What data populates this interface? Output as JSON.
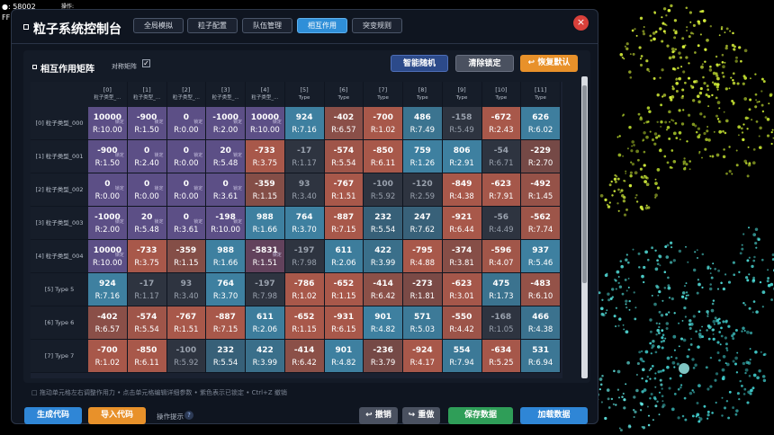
{
  "hud": {
    "count": "●: 58002",
    "op": "操作:",
    "fps": "FF"
  },
  "header": {
    "title": "粒子系统控制台",
    "tabs": [
      "全局模拟",
      "粒子配置",
      "队伍管理",
      "相互作用",
      "突变规则"
    ],
    "active_tab": 3,
    "close": "×"
  },
  "matrix": {
    "title": "相互作用矩阵",
    "symmetric_label": "对称矩阵",
    "symmetric": true,
    "buttons": [
      "智能随机",
      "清除锁定",
      "↩ 恢复默认"
    ],
    "lock_tag": "锁定",
    "columns": [
      {
        "index": "[0]",
        "name": "粒子类型_..."
      },
      {
        "index": "[1]",
        "name": "粒子类型_..."
      },
      {
        "index": "[2]",
        "name": "粒子类型_..."
      },
      {
        "index": "[3]",
        "name": "粒子类型_..."
      },
      {
        "index": "[4]",
        "name": "粒子类型_..."
      },
      {
        "index": "[5]",
        "name": "Type"
      },
      {
        "index": "[6]",
        "name": "Type"
      },
      {
        "index": "[7]",
        "name": "Type"
      },
      {
        "index": "[8]",
        "name": "Type"
      },
      {
        "index": "[9]",
        "name": "Type"
      },
      {
        "index": "[10]",
        "name": "Type"
      },
      {
        "index": "[11]",
        "name": "Type"
      }
    ],
    "rows": [
      {
        "label": "[0] 粒子类型_000",
        "cells": [
          {
            "value": 10000,
            "r": "R:10.00",
            "locked": true
          },
          {
            "value": -900,
            "r": "R:1.50",
            "locked": true
          },
          {
            "value": 0,
            "r": "R:0.00",
            "locked": true
          },
          {
            "value": -1000,
            "r": "R:2.00",
            "locked": true
          },
          {
            "value": 10000,
            "r": "R:10.00",
            "locked": true
          },
          {
            "value": 924,
            "r": "R:7.16"
          },
          {
            "value": -402,
            "r": "R:6.57"
          },
          {
            "value": -700,
            "r": "R:1.02"
          },
          {
            "value": 486,
            "r": "R:7.49"
          },
          {
            "value": -158,
            "r": "R:5.49"
          },
          {
            "value": -672,
            "r": "R:2.43"
          },
          {
            "value": 626,
            "r": "R:6.02"
          }
        ]
      },
      {
        "label": "[1] 粒子类型_001",
        "cells": [
          {
            "value": -900,
            "r": "R:1.50",
            "locked": true
          },
          {
            "value": 0,
            "r": "R:2.40",
            "locked": true
          },
          {
            "value": 0,
            "r": "R:0.00",
            "locked": true
          },
          {
            "value": 20,
            "r": "R:5.48",
            "locked": true
          },
          {
            "value": -733,
            "r": "R:3.75"
          },
          {
            "value": -17,
            "r": "R:1.17"
          },
          {
            "value": -574,
            "r": "R:5.54"
          },
          {
            "value": -850,
            "r": "R:6.11"
          },
          {
            "value": 759,
            "r": "R:1.26"
          },
          {
            "value": 806,
            "r": "R:2.91"
          },
          {
            "value": -54,
            "r": "R:6.71"
          },
          {
            "value": -229,
            "r": "R:2.70"
          }
        ]
      },
      {
        "label": "[2] 粒子类型_002",
        "cells": [
          {
            "value": 0,
            "r": "R:0.00",
            "locked": true
          },
          {
            "value": 0,
            "r": "R:0.00",
            "locked": true
          },
          {
            "value": 0,
            "r": "R:0.00",
            "locked": true
          },
          {
            "value": 0,
            "r": "R:3.61",
            "locked": true
          },
          {
            "value": -359,
            "r": "R:1.15"
          },
          {
            "value": 93,
            "r": "R:3.40"
          },
          {
            "value": -767,
            "r": "R:1.51"
          },
          {
            "value": -100,
            "r": "R:5.92"
          },
          {
            "value": -120,
            "r": "R:2.59"
          },
          {
            "value": -849,
            "r": "R:4.38"
          },
          {
            "value": -623,
            "r": "R:7.91"
          },
          {
            "value": -492,
            "r": "R:1.45"
          }
        ]
      },
      {
        "label": "[3] 粒子类型_003",
        "cells": [
          {
            "value": -1000,
            "r": "R:2.00",
            "locked": true
          },
          {
            "value": 20,
            "r": "R:5.48",
            "locked": true
          },
          {
            "value": 0,
            "r": "R:3.61",
            "locked": true
          },
          {
            "value": -198,
            "r": "R:10.00",
            "locked": true
          },
          {
            "value": 988,
            "r": "R:1.66"
          },
          {
            "value": 764,
            "r": "R:3.70"
          },
          {
            "value": -887,
            "r": "R:7.15"
          },
          {
            "value": 232,
            "r": "R:5.54"
          },
          {
            "value": 247,
            "r": "R:7.62"
          },
          {
            "value": -921,
            "r": "R:6.44"
          },
          {
            "value": -56,
            "r": "R:4.49"
          },
          {
            "value": -562,
            "r": "R:7.74"
          }
        ]
      },
      {
        "label": "[4] 粒子类型_004",
        "cells": [
          {
            "value": 10000,
            "r": "R:10.00",
            "locked": true
          },
          {
            "value": -733,
            "r": "R:3.75"
          },
          {
            "value": -359,
            "r": "R:1.15"
          },
          {
            "value": 988,
            "r": "R:1.66"
          },
          {
            "value": -5831,
            "r": "R:1.51",
            "locked": true
          },
          {
            "value": -197,
            "r": "R:7.98"
          },
          {
            "value": 611,
            "r": "R:2.06"
          },
          {
            "value": 422,
            "r": "R:3.99"
          },
          {
            "value": -795,
            "r": "R:4.88"
          },
          {
            "value": -374,
            "r": "R:3.81"
          },
          {
            "value": -596,
            "r": "R:4.07"
          },
          {
            "value": 937,
            "r": "R:5.46"
          }
        ]
      },
      {
        "label": "[5] Type 5",
        "cells": [
          {
            "value": 924,
            "r": "R:7.16"
          },
          {
            "value": -17,
            "r": "R:1.17"
          },
          {
            "value": 93,
            "r": "R:3.40"
          },
          {
            "value": 764,
            "r": "R:3.70"
          },
          {
            "value": -197,
            "r": "R:7.98"
          },
          {
            "value": -786,
            "r": "R:1.02"
          },
          {
            "value": -652,
            "r": "R:1.15"
          },
          {
            "value": -414,
            "r": "R:6.42"
          },
          {
            "value": -273,
            "r": "R:1.81"
          },
          {
            "value": -623,
            "r": "R:3.01"
          },
          {
            "value": 475,
            "r": "R:1.73"
          },
          {
            "value": -483,
            "r": "R:6.10"
          }
        ]
      },
      {
        "label": "[6] Type 6",
        "cells": [
          {
            "value": -402,
            "r": "R:6.57"
          },
          {
            "value": -574,
            "r": "R:5.54"
          },
          {
            "value": -767,
            "r": "R:1.51"
          },
          {
            "value": -887,
            "r": "R:7.15"
          },
          {
            "value": 611,
            "r": "R:2.06"
          },
          {
            "value": -652,
            "r": "R:1.15"
          },
          {
            "value": -931,
            "r": "R:6.15"
          },
          {
            "value": 901,
            "r": "R:4.82"
          },
          {
            "value": 571,
            "r": "R:5.03"
          },
          {
            "value": -550,
            "r": "R:4.42"
          },
          {
            "value": -168,
            "r": "R:1.05"
          },
          {
            "value": 466,
            "r": "R:4.38"
          }
        ]
      },
      {
        "label": "[7] Type 7",
        "cells": [
          {
            "value": -700,
            "r": "R:1.02"
          },
          {
            "value": -850,
            "r": "R:6.11"
          },
          {
            "value": -100,
            "r": "R:5.92"
          },
          {
            "value": 232,
            "r": "R:5.54"
          },
          {
            "value": 422,
            "r": "R:3.99"
          },
          {
            "value": -414,
            "r": "R:6.42"
          },
          {
            "value": 901,
            "r": "R:4.82"
          },
          {
            "value": -236,
            "r": "R:3.79"
          },
          {
            "value": -924,
            "r": "R:4.17"
          },
          {
            "value": 554,
            "r": "R:7.94"
          },
          {
            "value": -634,
            "r": "R:5.25"
          },
          {
            "value": 531,
            "r": "R:6.94"
          }
        ]
      }
    ]
  },
  "footer": {
    "hint": "□ 拖动单元格左右调整作用力 • 点击单元格编辑详细参数 • 紫色表示已锁定 • Ctrl+Z 撤销",
    "generate": "生成代码",
    "import": "导入代码",
    "tips": "操作提示",
    "help": "?",
    "undo": "↩ 撤销",
    "redo": "↪ 重做",
    "save": "保存数据",
    "load": "加载数据"
  }
}
